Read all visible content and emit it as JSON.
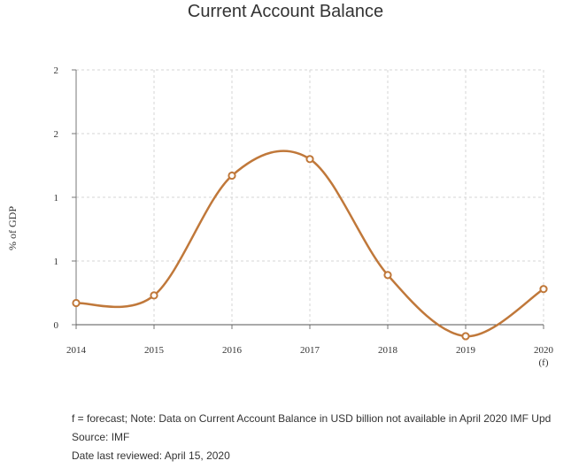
{
  "title": "Current Account Balance",
  "footnotes": [
    "f = forecast; Note: Data on Current Account Balance in USD billion not available in April 2020 IMF Upd",
    "Source: IMF",
    "Date last reviewed: April 15, 2020"
  ],
  "chart_data": {
    "type": "line",
    "title": "Current Account Balance",
    "xlabel": "",
    "ylabel": "% of GDP",
    "categories": [
      "2014",
      "2015",
      "2016",
      "2017",
      "2018",
      "2019",
      "2020"
    ],
    "category_notes": [
      "",
      "",
      "",
      "",
      "",
      "",
      "(f)"
    ],
    "y_tick_labels": [
      "0",
      "1",
      "1",
      "2",
      "2"
    ],
    "y_ticks": [
      0,
      0.5,
      1.0,
      1.5,
      2.0
    ],
    "ylim": [
      0,
      2.0
    ],
    "series": [
      {
        "values": [
          0.17,
          0.23,
          1.17,
          1.3,
          0.39,
          -0.09,
          0.28
        ],
        "color": "#c0783a"
      }
    ],
    "grid": true,
    "legend": "none"
  }
}
